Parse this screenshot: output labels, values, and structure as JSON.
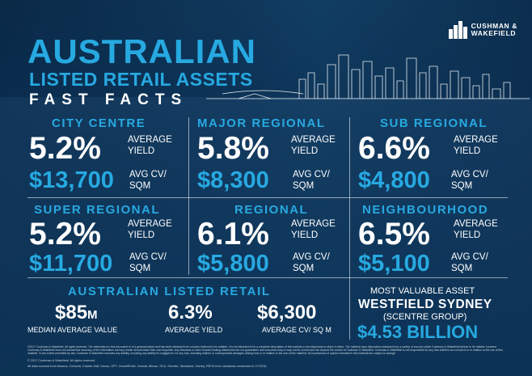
{
  "brand": {
    "line1": "CUSHMAN &",
    "line2": "WAKEFIELD",
    "logo_icon": "buildings-logo-icon"
  },
  "title": {
    "main": "AUSTRALIAN",
    "sub": "LISTED RETAIL ASSETS",
    "tagline": "FAST FACTS"
  },
  "segments": [
    {
      "name": "CITY CENTRE",
      "yield": "5.2%",
      "yield_label_1": "AVERAGE",
      "yield_label_2": "YIELD",
      "value": "$13,700",
      "value_label_1": "AVG CV/",
      "value_label_2": "SQM"
    },
    {
      "name": "MAJOR REGIONAL",
      "yield": "5.8%",
      "yield_label_1": "AVERAGE",
      "yield_label_2": "YIELD",
      "value": "$8,300",
      "value_label_1": "AVG CV/",
      "value_label_2": "SQM"
    },
    {
      "name": "SUB REGIONAL",
      "yield": "6.6%",
      "yield_label_1": "AVERAGE",
      "yield_label_2": "YIELD",
      "value": "$4,800",
      "value_label_1": "AVG CV/",
      "value_label_2": "SQM"
    },
    {
      "name": "SUPER REGIONAL",
      "yield": "5.2%",
      "yield_label_1": "AVERAGE",
      "yield_label_2": "YIELD",
      "value": "$11,700",
      "value_label_1": "AVG CV/",
      "value_label_2": "SQM"
    },
    {
      "name": "REGIONAL",
      "yield": "6.1%",
      "yield_label_1": "AVERAGE",
      "yield_label_2": "YIELD",
      "value": "$5,800",
      "value_label_1": "AVG CV/",
      "value_label_2": "SQM"
    },
    {
      "name": "NEIGHBOURHOOD",
      "yield": "6.5%",
      "yield_label_1": "AVERAGE",
      "yield_label_2": "YIELD",
      "value": "$5,100",
      "value_label_1": "AVG CV/",
      "value_label_2": "SQM"
    }
  ],
  "summary": {
    "heading": "AUSTRALIAN LISTED RETAIL",
    "median_value": "$85",
    "median_unit": "M",
    "median_label": "MEDIAN AVERAGE VALUE",
    "avg_yield": "6.3%",
    "avg_yield_label": "AVERAGE YIELD",
    "avg_cv": "$6,300",
    "avg_cv_label": "AVERAGE CV/ SQ M"
  },
  "most_valuable": {
    "heading": "MOST VALUABLE ASSET",
    "name": "WESTFIELD SYDNEY",
    "group": "(SCENTRE GROUP)",
    "value": "$4.53 BILLION"
  },
  "disclaimer": "©2017 Cushman & Wakefield. All rights reserved. The information in this document is of a general nature and has been obtained from sources believed to be reliable. It is not intended to be a complete description of the markets or developments to which it refers. The material uses information obtained from a variety of sources which Cushman & Wakefield believe to be reliable, however Cushman & Wakefield does not warrant the accuracy of the information and any reader should make their own enquiries. Any forecasts or other forward looking statements are not guarantees and outcomes may or may not be correct and are beyond the control of Cushman & Wakefield. Cushman & Wakefield is not responsible for any loss suffered as a result of or in relation to the use of this material. To the extent permitted by law, Cushman & Wakefield excludes any liability, including any liability for negligence, for any loss, including indirect or consequential damages arising from or in relation to the use of this material. All expressions of opinion included in this material are subject to change.",
  "copyright": "© 2017 Cushman & Wakefield. All rights reserved.",
  "sources": "All data sourced from Abacus, Centuria, Charter Hall, Dexus, GPT, GrowthPoint, Investa, Mirvac, SCA, Scentre, Stockland, Vicinity, REITs from valuations conducted in CY2016."
}
